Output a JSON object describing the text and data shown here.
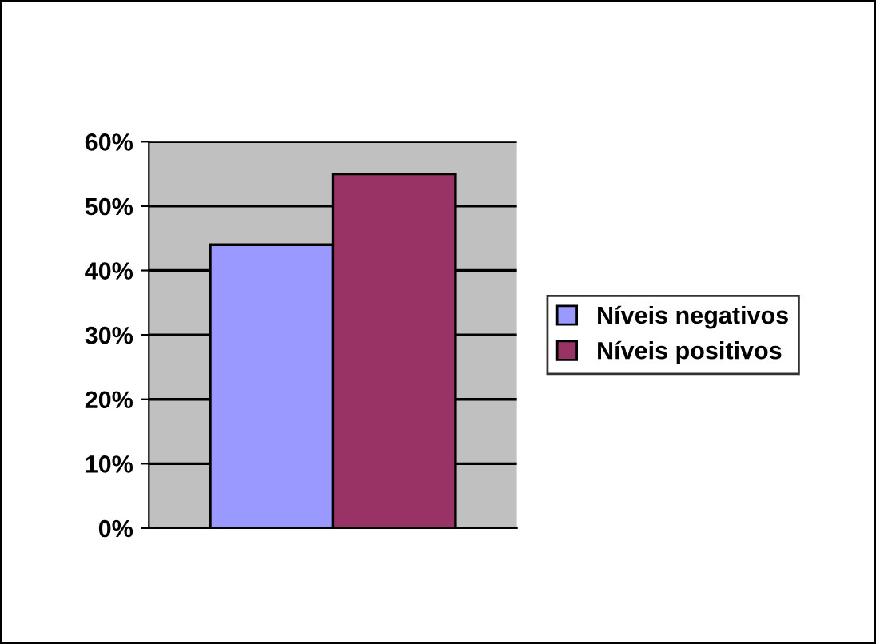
{
  "chart_data": {
    "type": "bar",
    "categories": [
      null
    ],
    "series": [
      {
        "name": "Níveis negativos",
        "color": "#9999ff",
        "values": [
          44
        ]
      },
      {
        "name": "Níveis positivos",
        "color": "#993366",
        "values": [
          55
        ]
      }
    ],
    "ylim": [
      0,
      60
    ],
    "yticks": [
      {
        "value": 0,
        "label": "0%"
      },
      {
        "value": 10,
        "label": "10%"
      },
      {
        "value": 20,
        "label": "20%"
      },
      {
        "value": 30,
        "label": "30%"
      },
      {
        "value": 40,
        "label": "40%"
      },
      {
        "value": 50,
        "label": "50%"
      },
      {
        "value": 60,
        "label": "60%"
      }
    ],
    "grid": "y",
    "legend": "right"
  }
}
